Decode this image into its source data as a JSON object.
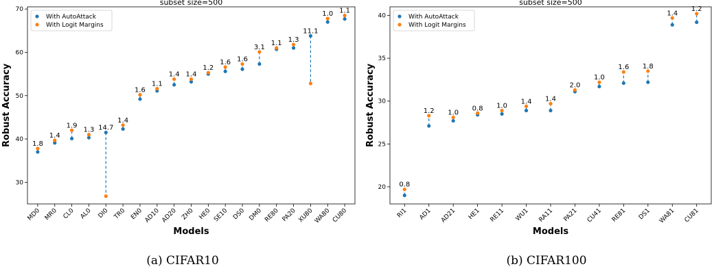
{
  "colors": {
    "autoattack": "#1f77b4",
    "logit": "#ff7f0e"
  },
  "captions": [
    "(a) CIFAR10",
    "(b) CIFAR100"
  ],
  "chart_data": [
    {
      "type": "scatter",
      "title": "subset size=500",
      "xlabel": "Models",
      "ylabel": "Robust Accuracy",
      "ylim": [
        25,
        70.5
      ],
      "yticks": [
        30,
        40,
        50,
        60,
        70
      ],
      "legend": {
        "position": "top-left",
        "entries": [
          "With AutoAttack",
          "With Logit Margins"
        ]
      },
      "categories": [
        "MD0",
        "MR0",
        "CL0",
        "AL0",
        "DI0",
        "TR0",
        "EN0",
        "AD10",
        "AD20",
        "ZH0",
        "HE0",
        "SE10",
        "DS0",
        "DM0",
        "RE80",
        "PA20",
        "XU80",
        "WA80",
        "CU80"
      ],
      "series": [
        {
          "name": "With AutoAttack",
          "values": [
            37.0,
            39.1,
            40.1,
            40.3,
            41.5,
            42.3,
            49.2,
            51.1,
            52.5,
            53.2,
            55.0,
            55.6,
            56.1,
            57.3,
            60.7,
            61.0,
            63.8,
            67.0,
            67.7
          ]
        },
        {
          "name": "With Logit Margins",
          "values": [
            37.8,
            39.7,
            42.0,
            41.0,
            26.8,
            43.2,
            50.2,
            51.6,
            53.8,
            53.8,
            55.3,
            56.6,
            57.3,
            60.1,
            61.0,
            61.8,
            52.8,
            67.8,
            68.5
          ]
        }
      ],
      "labels": [
        "1.8",
        "1.4",
        "1.9",
        "1.3",
        "14.7",
        "1.4",
        "1.6",
        "1.1",
        "1.4",
        "1.4",
        "1.2",
        "1.6",
        "1.6",
        "3.1",
        "1.1",
        "1.3",
        "11.1",
        "1.0",
        "1.1"
      ]
    },
    {
      "type": "scatter",
      "title": "subset size=500",
      "xlabel": "Models",
      "ylabel": "Robust Accuracy",
      "ylim": [
        18,
        41
      ],
      "yticks": [
        20,
        25,
        30,
        35,
        40
      ],
      "legend": {
        "position": "top-left",
        "entries": [
          "With AutoAttack",
          "With Logit Margins"
        ]
      },
      "categories": [
        "RI1",
        "AD1",
        "AD21",
        "HE1",
        "RE11",
        "WU1",
        "RA11",
        "PA21",
        "CU41",
        "RE81",
        "DS1",
        "WA81",
        "CU81"
      ],
      "series": [
        {
          "name": "With AutoAttack",
          "values": [
            19.0,
            27.1,
            27.7,
            28.4,
            28.5,
            28.9,
            28.9,
            31.1,
            31.7,
            32.1,
            32.2,
            38.9,
            39.2
          ]
        },
        {
          "name": "With Logit Margins",
          "values": [
            19.7,
            28.3,
            28.1,
            28.6,
            28.9,
            29.4,
            29.7,
            31.3,
            32.2,
            33.4,
            33.5,
            39.7,
            40.2
          ]
        }
      ],
      "labels": [
        "0.8",
        "1.2",
        "1.0",
        "0.8",
        "1.0",
        "1.4",
        "1.4",
        "2.0",
        "1.0",
        "1.6",
        "1.8",
        "1.4",
        "1.2"
      ]
    }
  ]
}
